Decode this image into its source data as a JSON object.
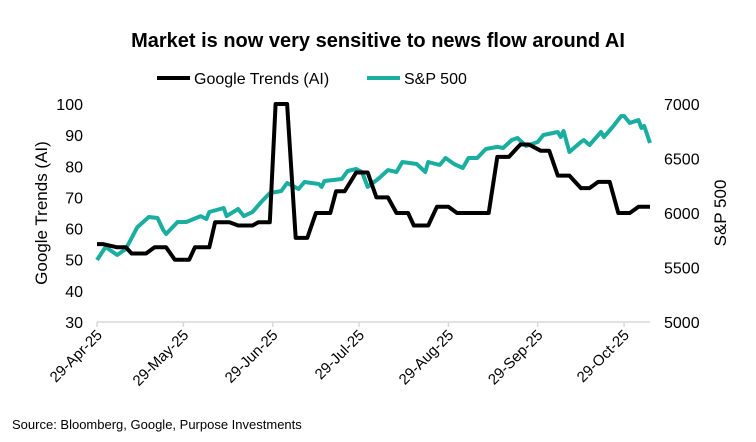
{
  "chart_data": {
    "type": "line",
    "title": "Market is now very sensitive to news flow around AI",
    "source": "Source: Bloomberg, Google, Purpose Investments",
    "legend_position": "top",
    "grid": false,
    "x_range": [
      "2025-04-29",
      "2025-11-07"
    ],
    "x_ticks": [
      {
        "date": "2025-04-29",
        "label": "29-Apr-25"
      },
      {
        "date": "2025-05-29",
        "label": "29-May-25"
      },
      {
        "date": "2025-06-29",
        "label": "29-Jun-25"
      },
      {
        "date": "2025-07-29",
        "label": "29-Jul-25"
      },
      {
        "date": "2025-08-29",
        "label": "29-Aug-25"
      },
      {
        "date": "2025-09-29",
        "label": "29-Sep-25"
      },
      {
        "date": "2025-10-29",
        "label": "29-Oct-25"
      }
    ],
    "y_left": {
      "label": "Google Trends (AI)",
      "range": [
        30,
        100
      ],
      "ticks": [
        "30",
        "40",
        "50",
        "60",
        "70",
        "80",
        "90",
        "100"
      ]
    },
    "y_right": {
      "label": "S&P 500",
      "range": [
        5000,
        7000
      ],
      "ticks": [
        "5000",
        "5500",
        "6000",
        "6500",
        "7000"
      ]
    },
    "series": [
      {
        "name": "Google Trends (AI)",
        "axis": "left",
        "color": "#000000",
        "points": [
          [
            "2025-04-29",
            55
          ],
          [
            "2025-05-01",
            55
          ],
          [
            "2025-05-06",
            54
          ],
          [
            "2025-05-09",
            54
          ],
          [
            "2025-05-11",
            52
          ],
          [
            "2025-05-16",
            52
          ],
          [
            "2025-05-19",
            54
          ],
          [
            "2025-05-23",
            54
          ],
          [
            "2025-05-26",
            50
          ],
          [
            "2025-05-31",
            50
          ],
          [
            "2025-06-02",
            54
          ],
          [
            "2025-06-07",
            54
          ],
          [
            "2025-06-09",
            62
          ],
          [
            "2025-06-14",
            62
          ],
          [
            "2025-06-17",
            61
          ],
          [
            "2025-06-22",
            61
          ],
          [
            "2025-06-24",
            62
          ],
          [
            "2025-06-28",
            62
          ],
          [
            "2025-06-30",
            100
          ],
          [
            "2025-07-04",
            100
          ],
          [
            "2025-07-07",
            57
          ],
          [
            "2025-07-11",
            57
          ],
          [
            "2025-07-14",
            65
          ],
          [
            "2025-07-19",
            65
          ],
          [
            "2025-07-21",
            72
          ],
          [
            "2025-07-24",
            72
          ],
          [
            "2025-07-28",
            78
          ],
          [
            "2025-08-01",
            78
          ],
          [
            "2025-08-04",
            70
          ],
          [
            "2025-08-08",
            70
          ],
          [
            "2025-08-11",
            65
          ],
          [
            "2025-08-15",
            65
          ],
          [
            "2025-08-17",
            61
          ],
          [
            "2025-08-22",
            61
          ],
          [
            "2025-08-25",
            67
          ],
          [
            "2025-08-29",
            67
          ],
          [
            "2025-09-01",
            65
          ],
          [
            "2025-09-12",
            65
          ],
          [
            "2025-09-15",
            83
          ],
          [
            "2025-09-19",
            83
          ],
          [
            "2025-09-23",
            87
          ],
          [
            "2025-09-26",
            87
          ],
          [
            "2025-09-30",
            85
          ],
          [
            "2025-10-03",
            85
          ],
          [
            "2025-10-06",
            77
          ],
          [
            "2025-10-10",
            77
          ],
          [
            "2025-10-14",
            73
          ],
          [
            "2025-10-17",
            73
          ],
          [
            "2025-10-20",
            75
          ],
          [
            "2025-10-24",
            75
          ],
          [
            "2025-10-27",
            65
          ],
          [
            "2025-10-31",
            65
          ],
          [
            "2025-11-03",
            67
          ],
          [
            "2025-11-07",
            67
          ]
        ]
      },
      {
        "name": "S&P 500",
        "axis": "right",
        "color": "#1aaea0",
        "points": [
          [
            "2025-04-29",
            5569
          ],
          [
            "2025-05-02",
            5688
          ],
          [
            "2025-05-06",
            5615
          ],
          [
            "2025-05-09",
            5670
          ],
          [
            "2025-05-13",
            5870
          ],
          [
            "2025-05-17",
            5963
          ],
          [
            "2025-05-20",
            5954
          ],
          [
            "2025-05-22",
            5844
          ],
          [
            "2025-05-23",
            5807
          ],
          [
            "2025-05-27",
            5917
          ],
          [
            "2025-05-30",
            5917
          ],
          [
            "2025-06-04",
            5972
          ],
          [
            "2025-06-06",
            5945
          ],
          [
            "2025-06-07",
            6009
          ],
          [
            "2025-06-12",
            6046
          ],
          [
            "2025-06-13",
            5972
          ],
          [
            "2025-06-17",
            6037
          ],
          [
            "2025-06-19",
            5972
          ],
          [
            "2025-06-22",
            6009
          ],
          [
            "2025-06-25",
            6101
          ],
          [
            "2025-06-28",
            6183
          ],
          [
            "2025-07-02",
            6202
          ],
          [
            "2025-07-04",
            6275
          ],
          [
            "2025-07-08",
            6220
          ],
          [
            "2025-07-10",
            6284
          ],
          [
            "2025-07-15",
            6266
          ],
          [
            "2025-07-16",
            6239
          ],
          [
            "2025-07-17",
            6294
          ],
          [
            "2025-07-23",
            6312
          ],
          [
            "2025-07-25",
            6385
          ],
          [
            "2025-07-28",
            6404
          ],
          [
            "2025-07-30",
            6376
          ],
          [
            "2025-08-01",
            6239
          ],
          [
            "2025-08-05",
            6321
          ],
          [
            "2025-08-08",
            6394
          ],
          [
            "2025-08-11",
            6376
          ],
          [
            "2025-08-13",
            6468
          ],
          [
            "2025-08-18",
            6450
          ],
          [
            "2025-08-21",
            6376
          ],
          [
            "2025-08-22",
            6468
          ],
          [
            "2025-08-26",
            6440
          ],
          [
            "2025-08-28",
            6505
          ],
          [
            "2025-08-31",
            6450
          ],
          [
            "2025-09-03",
            6413
          ],
          [
            "2025-09-05",
            6505
          ],
          [
            "2025-09-08",
            6505
          ],
          [
            "2025-09-11",
            6587
          ],
          [
            "2025-09-15",
            6606
          ],
          [
            "2025-09-17",
            6596
          ],
          [
            "2025-09-20",
            6670
          ],
          [
            "2025-09-22",
            6688
          ],
          [
            "2025-09-25",
            6615
          ],
          [
            "2025-09-29",
            6651
          ],
          [
            "2025-10-01",
            6716
          ],
          [
            "2025-10-06",
            6743
          ],
          [
            "2025-10-07",
            6697
          ],
          [
            "2025-10-08",
            6752
          ],
          [
            "2025-10-10",
            6560
          ],
          [
            "2025-10-14",
            6651
          ],
          [
            "2025-10-15",
            6670
          ],
          [
            "2025-10-17",
            6624
          ],
          [
            "2025-10-21",
            6743
          ],
          [
            "2025-10-22",
            6697
          ],
          [
            "2025-10-25",
            6789
          ],
          [
            "2025-10-28",
            6890
          ],
          [
            "2025-10-29",
            6890
          ],
          [
            "2025-10-31",
            6826
          ],
          [
            "2025-11-03",
            6853
          ],
          [
            "2025-11-04",
            6780
          ],
          [
            "2025-11-05",
            6798
          ],
          [
            "2025-11-07",
            6642
          ]
        ]
      }
    ]
  }
}
